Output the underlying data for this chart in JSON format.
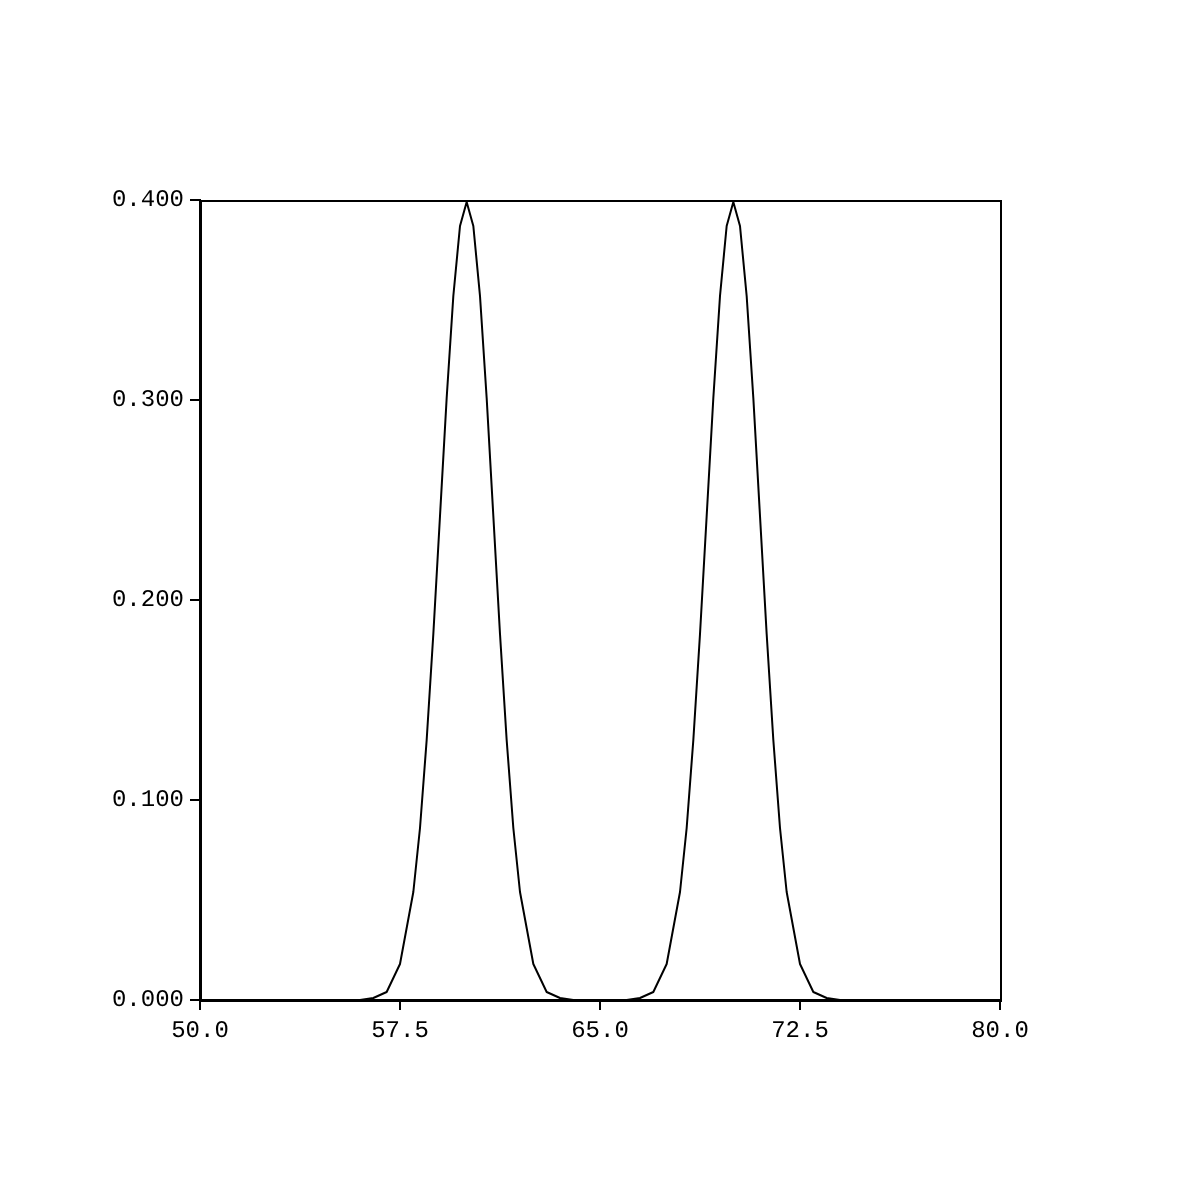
{
  "chart_data": {
    "type": "line",
    "x": [
      50,
      55,
      56,
      56.5,
      57,
      57.5,
      58,
      58.25,
      58.5,
      58.75,
      59,
      59.25,
      59.5,
      59.75,
      60,
      60.25,
      60.5,
      60.75,
      61,
      61.25,
      61.5,
      61.75,
      62,
      62.5,
      63,
      63.5,
      64,
      65,
      66,
      66.5,
      67,
      67.5,
      68,
      68.25,
      68.5,
      68.75,
      69,
      69.25,
      69.5,
      69.75,
      70,
      70.25,
      70.5,
      70.75,
      71,
      71.25,
      71.5,
      71.75,
      72,
      72.5,
      73,
      73.5,
      74,
      75,
      80
    ],
    "series": [
      {
        "color": "#000000",
        "values": [
          0,
          0,
          0,
          0.001,
          0.004,
          0.018,
          0.054,
          0.086,
          0.13,
          0.183,
          0.242,
          0.301,
          0.352,
          0.387,
          0.399,
          0.387,
          0.352,
          0.301,
          0.242,
          0.183,
          0.13,
          0.086,
          0.054,
          0.018,
          0.004,
          0.001,
          0,
          0,
          0,
          0.001,
          0.004,
          0.018,
          0.054,
          0.086,
          0.13,
          0.183,
          0.242,
          0.301,
          0.352,
          0.387,
          0.399,
          0.387,
          0.352,
          0.301,
          0.242,
          0.183,
          0.13,
          0.086,
          0.054,
          0.018,
          0.004,
          0.001,
          0,
          0,
          0
        ]
      }
    ],
    "xlim": [
      50,
      80
    ],
    "xticks": [
      {
        "value": 50,
        "label": "50.0"
      },
      {
        "value": 57.5,
        "label": "57.5"
      },
      {
        "value": 65,
        "label": "65.0"
      },
      {
        "value": 72.5,
        "label": "72.5"
      },
      {
        "value": 80,
        "label": "80.0"
      }
    ],
    "ylim": [
      0,
      0.4
    ],
    "yticks": [
      {
        "value": 0,
        "label": "0.000"
      },
      {
        "value": 0.1,
        "label": "0.100"
      },
      {
        "value": 0.2,
        "label": "0.200"
      },
      {
        "value": 0.3,
        "label": "0.300"
      },
      {
        "value": 0.4,
        "label": "0.400"
      }
    ],
    "grid": false,
    "legend": false,
    "marker": "none",
    "line_style": "solid"
  }
}
